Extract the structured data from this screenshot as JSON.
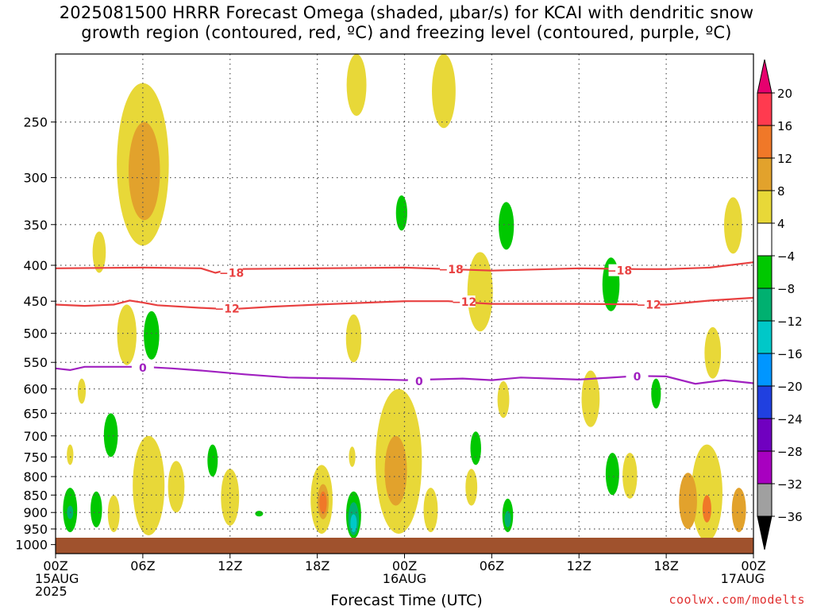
{
  "title_line1": "2025081500 HRRR Forecast Omega (shaded, μbar/s) for KCAI with dendritic snow",
  "title_line2": "growth region (contoured, red, ºC) and freezing level (contoured, purple, ºC)",
  "x_axis_label": "Forecast Time (UTC)",
  "credit": "coolwx.com/modelts",
  "chart_data": {
    "type": "heatmap",
    "title": "2025081500 HRRR Forecast Omega (shaded, μbar/s) for KCAI with dendritic snow growth region (contoured, red, ºC) and freezing level (contoured, purple, ºC)",
    "xlabel": "Forecast Time (UTC)",
    "ylabel": "",
    "x_range_hours": [
      0,
      48
    ],
    "y_range_hpa": [
      1030,
      200
    ],
    "x_ticks": [
      {
        "hour": 0,
        "lines": [
          "00Z",
          "15AUG",
          "2025"
        ]
      },
      {
        "hour": 6,
        "lines": [
          "06Z"
        ]
      },
      {
        "hour": 12,
        "lines": [
          "12Z"
        ]
      },
      {
        "hour": 18,
        "lines": [
          "18Z"
        ]
      },
      {
        "hour": 24,
        "lines": [
          "00Z",
          "16AUG"
        ]
      },
      {
        "hour": 30,
        "lines": [
          "06Z"
        ]
      },
      {
        "hour": 36,
        "lines": [
          "12Z"
        ]
      },
      {
        "hour": 42,
        "lines": [
          "18Z"
        ]
      },
      {
        "hour": 48,
        "lines": [
          "00Z",
          "17AUG"
        ]
      }
    ],
    "y_ticks": [
      250,
      300,
      350,
      400,
      450,
      500,
      550,
      600,
      650,
      700,
      750,
      800,
      850,
      900,
      950,
      1000
    ],
    "grid": true,
    "colorbar": {
      "labels": [
        "20",
        "16",
        "12",
        "8",
        "4",
        "−4",
        "−8",
        "−12",
        "−16",
        "−20",
        "−24",
        "−28",
        "−32",
        "−36"
      ],
      "colors": [
        "#ff3a4f",
        "#f07828",
        "#e2a22c",
        "#e8d838",
        "#ffffff",
        "#00c800",
        "#00b070",
        "#00c8c8",
        "#0096ff",
        "#2040e0",
        "#7000c0",
        "#a800c0",
        "#a0a0a0"
      ],
      "top_arrow_color": "#e6006e",
      "bottom_arrow_color": "#000000"
    },
    "contours": [
      {
        "value": -18,
        "label": "−18",
        "color": "#e84040",
        "points": [
          [
            0,
            404
          ],
          [
            6,
            403
          ],
          [
            10,
            404
          ],
          [
            11,
            410
          ],
          [
            12,
            405
          ],
          [
            18,
            404
          ],
          [
            24,
            403
          ],
          [
            27,
            405
          ],
          [
            30,
            407
          ],
          [
            36,
            404
          ],
          [
            40,
            405
          ],
          [
            42,
            405
          ],
          [
            45,
            403
          ],
          [
            48,
            396
          ]
        ],
        "labels_at": [
          [
            12.1,
            410
          ],
          [
            27.2,
            405
          ],
          [
            38.8,
            407
          ]
        ]
      },
      {
        "value": -12,
        "label": "−12",
        "color": "#e84040",
        "points": [
          [
            0,
            455
          ],
          [
            2,
            457
          ],
          [
            4,
            455
          ],
          [
            5.1,
            449
          ],
          [
            6,
            452
          ],
          [
            7,
            456
          ],
          [
            10,
            460
          ],
          [
            12,
            462
          ],
          [
            15,
            458
          ],
          [
            18,
            455
          ],
          [
            24,
            450
          ],
          [
            27,
            450
          ],
          [
            30,
            454
          ],
          [
            36,
            454
          ],
          [
            42,
            455
          ],
          [
            45,
            449
          ],
          [
            48,
            445
          ]
        ],
        "labels_at": [
          [
            11.8,
            461
          ],
          [
            28.1,
            451
          ],
          [
            40.8,
            455
          ]
        ]
      },
      {
        "value": 0,
        "label": "0",
        "color": "#a020c0",
        "points": [
          [
            0,
            561
          ],
          [
            1,
            564
          ],
          [
            2,
            558
          ],
          [
            6,
            558
          ],
          [
            8,
            561
          ],
          [
            10,
            565
          ],
          [
            13,
            572
          ],
          [
            16,
            578
          ],
          [
            20,
            580
          ],
          [
            24,
            583
          ],
          [
            28,
            580
          ],
          [
            30,
            583
          ],
          [
            32,
            578
          ],
          [
            36,
            582
          ],
          [
            40,
            575
          ],
          [
            42,
            576
          ],
          [
            44,
            590
          ],
          [
            46,
            583
          ],
          [
            48,
            589
          ]
        ],
        "labels_at": [
          [
            6,
            560
          ],
          [
            25,
            585
          ],
          [
            40,
            576
          ]
        ]
      }
    ],
    "shaded_regions": [
      {
        "range": "4 to 8",
        "hour": 6,
        "hpa": [
          220,
          375
        ]
      },
      {
        "range": "8 to 12",
        "hour": 6.1,
        "hpa": [
          250,
          345
        ]
      },
      {
        "range": "4 to 8",
        "hour": 26.7,
        "hpa": [
          200,
          255
        ]
      },
      {
        "range": "4 to 8",
        "hour": 20.7,
        "hpa": [
          200,
          245
        ]
      },
      {
        "range": "-4 to -8",
        "hour": 23.8,
        "hpa": [
          318,
          357
        ]
      },
      {
        "range": "-4 to -8",
        "hour": 31.0,
        "hpa": [
          325,
          380
        ]
      },
      {
        "range": "4 to 8",
        "hour": 3.0,
        "hpa": [
          358,
          410
        ]
      },
      {
        "range": "4 to 8",
        "hour": 46.6,
        "hpa": [
          320,
          385
        ]
      },
      {
        "range": "4 to 8",
        "hour": 29.2,
        "hpa": [
          383,
          497
        ]
      },
      {
        "range": "-4 to -8",
        "hour": 38.2,
        "hpa": [
          390,
          465
        ]
      },
      {
        "range": "4 to 8",
        "hour": 4.9,
        "hpa": [
          455,
          555
        ]
      },
      {
        "range": "-4 to -8",
        "hour": 6.6,
        "hpa": [
          465,
          545
        ]
      },
      {
        "range": "4 to 8",
        "hour": 20.5,
        "hpa": [
          470,
          550
        ]
      },
      {
        "range": "4 to 8",
        "hour": 45.2,
        "hpa": [
          490,
          580
        ]
      },
      {
        "range": "4 to 8",
        "hour": 1.8,
        "hpa": [
          580,
          630
        ]
      },
      {
        "range": "-4 to -8",
        "hour": 41.3,
        "hpa": [
          580,
          640
        ]
      },
      {
        "range": "4 to 8",
        "hour": 30.8,
        "hpa": [
          585,
          660
        ]
      },
      {
        "range": "4 to 8",
        "hour": 36.8,
        "hpa": [
          565,
          680
        ]
      },
      {
        "range": "-4 to -8",
        "hour": 3.8,
        "hpa": [
          650,
          750
        ]
      },
      {
        "range": "-4 to -8",
        "hour": 28.9,
        "hpa": [
          690,
          770
        ]
      },
      {
        "range": "4 to 8",
        "hour": 23.6,
        "hpa": [
          600,
          965
        ]
      },
      {
        "range": "8 to 12",
        "hour": 23.4,
        "hpa": [
          700,
          880
        ]
      },
      {
        "range": "4 to 8",
        "hour": 1.0,
        "hpa": [
          720,
          770
        ]
      },
      {
        "range": "4 to 8",
        "hour": 20.4,
        "hpa": [
          725,
          775
        ]
      },
      {
        "range": "-4 to -8",
        "hour": 10.8,
        "hpa": [
          720,
          800
        ]
      },
      {
        "range": "-4 to -8",
        "hour": 38.3,
        "hpa": [
          740,
          850
        ]
      },
      {
        "range": "4 to 8",
        "hour": 39.5,
        "hpa": [
          740,
          860
        ]
      },
      {
        "range": "4 to 8",
        "hour": 6.4,
        "hpa": [
          700,
          970
        ]
      },
      {
        "range": "4 to 8",
        "hour": 8.3,
        "hpa": [
          760,
          900
        ]
      },
      {
        "range": "4 to 8",
        "hour": 12.0,
        "hpa": [
          780,
          940
        ]
      },
      {
        "range": "4 to 8",
        "hour": 18.3,
        "hpa": [
          770,
          965
        ]
      },
      {
        "range": "8 to 12",
        "hour": 18.4,
        "hpa": [
          820,
          920
        ]
      },
      {
        "range": "12 to 16",
        "hour": 18.4,
        "hpa": [
          840,
          905
        ]
      },
      {
        "range": "4 to 8",
        "hour": 28.6,
        "hpa": [
          780,
          880
        ]
      },
      {
        "range": "4 to 8",
        "hour": 25.8,
        "hpa": [
          830,
          960
        ]
      },
      {
        "range": "4 to 8",
        "hour": 4.0,
        "hpa": [
          850,
          960
        ]
      },
      {
        "range": "-4 to -8",
        "hour": 1.0,
        "hpa": [
          830,
          960
        ]
      },
      {
        "range": "-8 to -12",
        "hour": 1.0,
        "hpa": [
          880,
          920
        ]
      },
      {
        "range": "-4 to -8",
        "hour": 2.8,
        "hpa": [
          840,
          945
        ]
      },
      {
        "range": "-4 to -8",
        "hour": 20.5,
        "hpa": [
          840,
          980
        ]
      },
      {
        "range": "-8 to -12",
        "hour": 20.5,
        "hpa": [
          870,
          970
        ]
      },
      {
        "range": "-12 to -16",
        "hour": 20.5,
        "hpa": [
          905,
          960
        ]
      },
      {
        "range": "-4 to -8",
        "hour": 31.1,
        "hpa": [
          860,
          960
        ]
      },
      {
        "range": "-8 to -12",
        "hour": 31.1,
        "hpa": [
          895,
          945
        ]
      },
      {
        "range": "-4 to -8",
        "hour": 14.0,
        "hpa": [
          895,
          912
        ]
      },
      {
        "range": "4 to 8",
        "hour": 44.8,
        "hpa": [
          720,
          990
        ]
      },
      {
        "range": "8 to 12",
        "hour": 43.5,
        "hpa": [
          790,
          950
        ]
      },
      {
        "range": "12 to 16",
        "hour": 44.8,
        "hpa": [
          850,
          930
        ]
      },
      {
        "range": "8 to 12",
        "hour": 47.0,
        "hpa": [
          830,
          960
        ]
      }
    ]
  }
}
